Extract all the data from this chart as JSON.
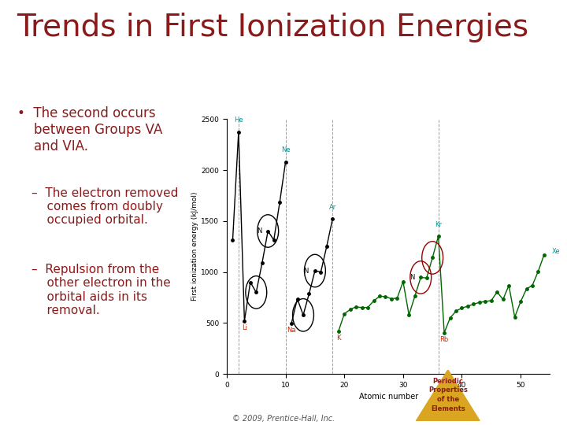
{
  "title": "Trends in First Ionization Energies",
  "title_color": "#8B1A1A",
  "title_fontsize": 28,
  "background_color": "#FFFFFF",
  "bullet_text": "The second occurs between Groups VA and VIA.",
  "bullet_color": "#8B1A1A",
  "sub_bullets": [
    "The electron removed comes from doubly occupied orbital.",
    "Repulsion from the other electron in the orbital aids in its removal."
  ],
  "sub_bullet_color": "#8B1A1A",
  "footer_left": "© 2009, Prentice-Hall, Inc.",
  "footer_color": "#555555",
  "triangle_color": "#DAA520",
  "periodic_text": [
    "Periodic",
    "Properties",
    "of the",
    "Elements"
  ],
  "periodic_text_color": "#8B1A1A",
  "atomic_numbers": [
    1,
    2,
    3,
    4,
    5,
    6,
    7,
    8,
    9,
    10,
    11,
    12,
    13,
    14,
    15,
    16,
    17,
    18,
    19,
    20,
    21,
    22,
    23,
    24,
    25,
    26,
    27,
    28,
    29,
    30,
    31,
    32,
    33,
    34,
    35,
    36,
    37,
    38,
    39,
    40,
    41,
    42,
    43,
    44,
    45,
    46,
    47,
    48,
    49,
    50,
    51,
    52,
    53,
    54
  ],
  "ie_values": [
    1312,
    2372,
    520,
    900,
    801,
    1086,
    1402,
    1314,
    1681,
    2081,
    496,
    738,
    578,
    786,
    1012,
    1000,
    1251,
    1521,
    419,
    590,
    633,
    659,
    651,
    653,
    717,
    762,
    760,
    737,
    745,
    906,
    579,
    762,
    947,
    941,
    1140,
    1351,
    403,
    550,
    616,
    648,
    664,
    685,
    702,
    711,
    720,
    804,
    731,
    868,
    558,
    709,
    834,
    869,
    1008,
    1170
  ],
  "ylabel": "First ionization energy (kJ/mol)",
  "xlabel": "Atomic number",
  "ylim": [
    0,
    2500
  ],
  "yticks": [
    0,
    500,
    1000,
    1500,
    2000,
    2500
  ],
  "xlim": [
    0,
    55
  ],
  "xticks": [
    0,
    10,
    20,
    30,
    40,
    50
  ]
}
